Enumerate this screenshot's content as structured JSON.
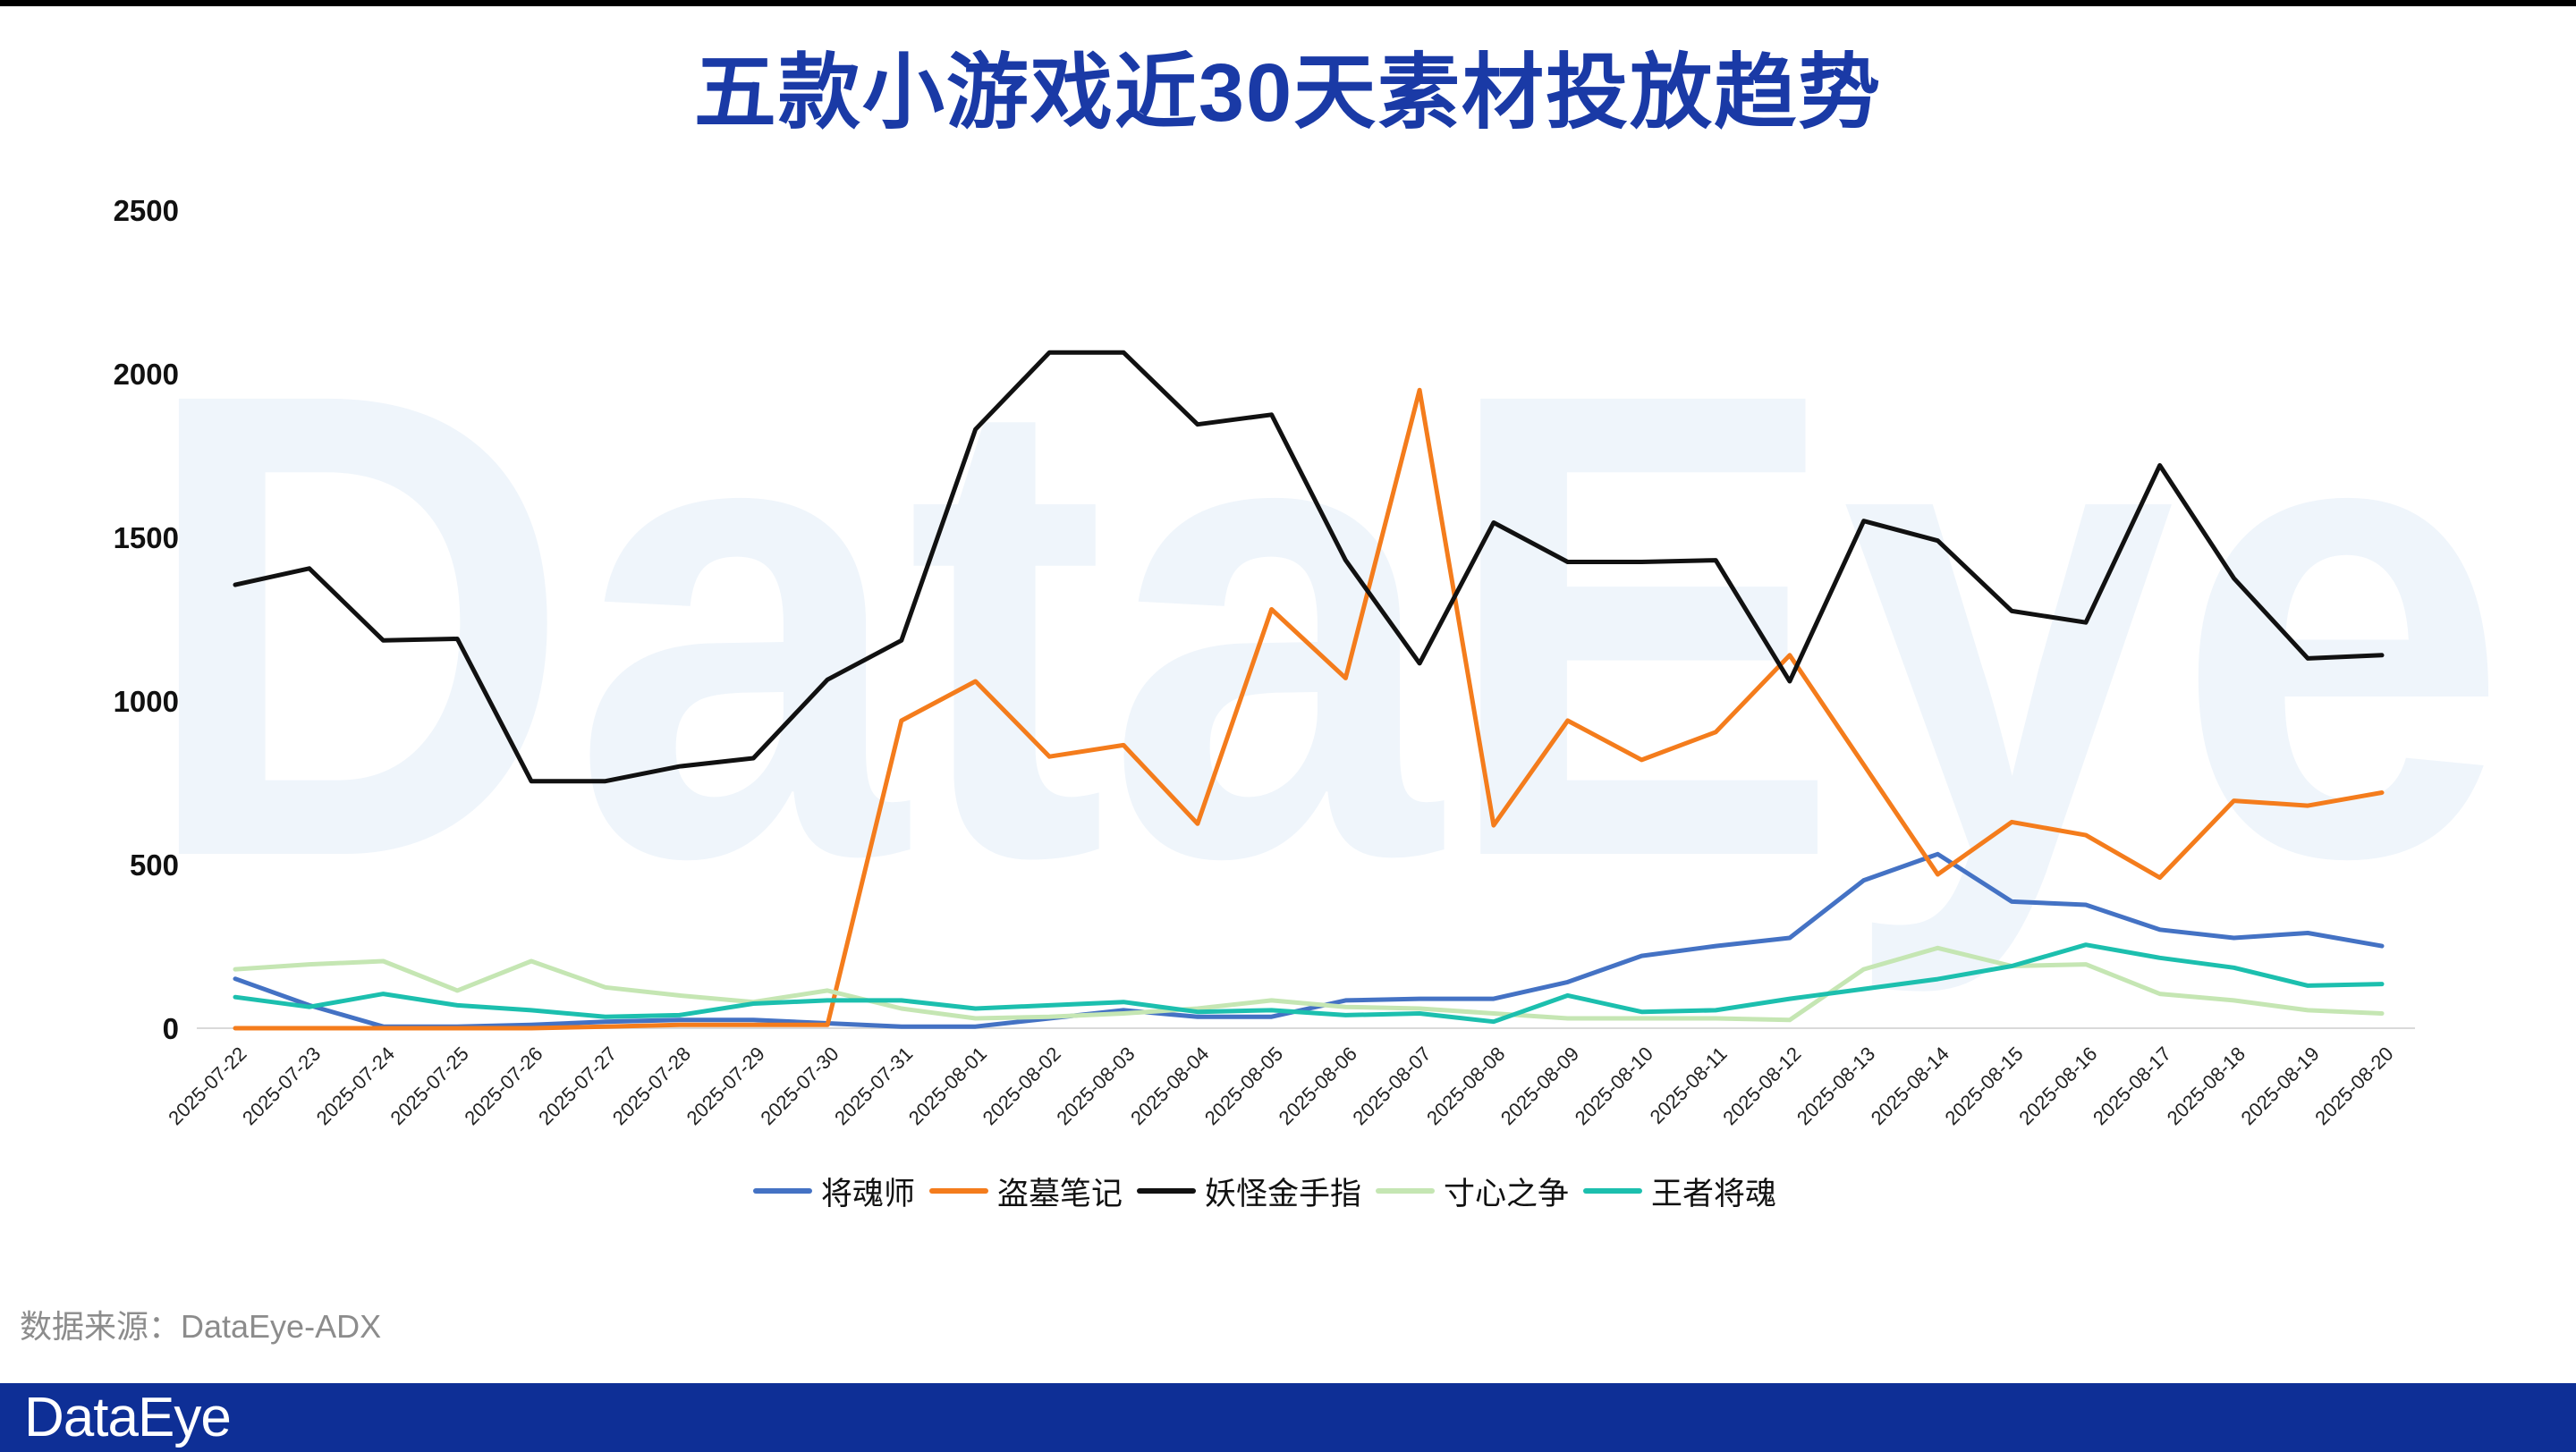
{
  "source": "数据来源：DataEye-ADX",
  "brand": {
    "logo_text": "DataEye",
    "watermark": "DataEye",
    "footer_color": "#0e2f96",
    "title_color": "#1a3aa6",
    "watermark_color": "#eff5fb"
  },
  "chart_data": {
    "type": "line",
    "title": "五款小游戏近30天素材投放趋势",
    "xlabel": "",
    "ylabel": "",
    "ylim": [
      0,
      2500
    ],
    "yticks": [
      0,
      500,
      1000,
      1500,
      2000,
      2500
    ],
    "grid": false,
    "legend": "bottom",
    "x": [
      "2025-07-22",
      "2025-07-23",
      "2025-07-24",
      "2025-07-25",
      "2025-07-26",
      "2025-07-27",
      "2025-07-28",
      "2025-07-29",
      "2025-07-30",
      "2025-07-31",
      "2025-08-01",
      "2025-08-02",
      "2025-08-03",
      "2025-08-04",
      "2025-08-05",
      "2025-08-06",
      "2025-08-07",
      "2025-08-08",
      "2025-08-09",
      "2025-08-10",
      "2025-08-11",
      "2025-08-12",
      "2025-08-13",
      "2025-08-14",
      "2025-08-15",
      "2025-08-16",
      "2025-08-17",
      "2025-08-18",
      "2025-08-19",
      "2025-08-20"
    ],
    "series": [
      {
        "name": "将魂师",
        "color": "#4472c4",
        "values": [
          151,
          70,
          5,
          5,
          10,
          20,
          25,
          25,
          15,
          5,
          5,
          30,
          55,
          35,
          35,
          85,
          90,
          90,
          141,
          221,
          251,
          276,
          452,
          532,
          387,
          377,
          301,
          276,
          291,
          251
        ]
      },
      {
        "name": "盗墓笔记",
        "color": "#f47c1c",
        "values": [
          0,
          0,
          0,
          0,
          0,
          5,
          10,
          10,
          10,
          940,
          1060,
          830,
          865,
          625,
          1280,
          1070,
          1950,
          620,
          940,
          820,
          905,
          1140,
          805,
          470,
          630,
          590,
          460,
          695,
          680,
          720
        ]
      },
      {
        "name": "妖怪金手指",
        "color": "#111111",
        "values": [
          1355,
          1405,
          1185,
          1190,
          755,
          755,
          800,
          825,
          1065,
          1185,
          1830,
          2065,
          2065,
          1845,
          1875,
          1430,
          1115,
          1545,
          1425,
          1425,
          1430,
          1060,
          1550,
          1490,
          1275,
          1240,
          1720,
          1375,
          1130,
          1140
        ]
      },
      {
        "name": "寸心之争",
        "color": "#c5e6b3",
        "values": [
          180,
          195,
          205,
          115,
          205,
          125,
          100,
          80,
          115,
          60,
          30,
          35,
          45,
          60,
          85,
          65,
          60,
          45,
          30,
          30,
          30,
          25,
          180,
          245,
          190,
          195,
          105,
          85,
          55,
          45
        ]
      },
      {
        "name": "王者将魂",
        "color": "#1cbfae",
        "values": [
          95,
          65,
          105,
          70,
          55,
          35,
          40,
          75,
          85,
          85,
          60,
          70,
          80,
          50,
          55,
          40,
          45,
          20,
          100,
          50,
          55,
          90,
          120,
          150,
          190,
          255,
          215,
          185,
          130,
          135
        ]
      }
    ]
  }
}
